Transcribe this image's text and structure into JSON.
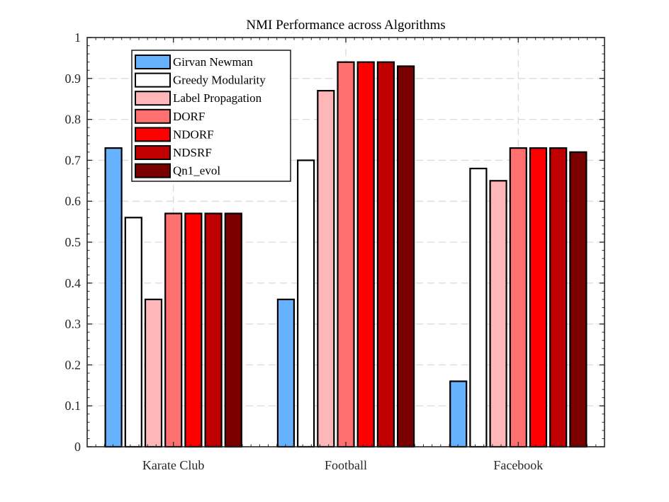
{
  "chart_data": {
    "type": "bar",
    "title": "NMI Performance across Algorithms",
    "xlabel": "",
    "ylabel": "",
    "categories": [
      "Karate Club",
      "Football",
      "Facebook"
    ],
    "ylim": [
      0,
      1
    ],
    "yticks": [
      "0",
      "0.1",
      "0.2",
      "0.3",
      "0.4",
      "0.5",
      "0.6",
      "0.7",
      "0.8",
      "0.9",
      "1"
    ],
    "grid": true,
    "legend_position": "top-left",
    "series": [
      {
        "name": "Girvan Newman",
        "color": "#66b2ff",
        "values": [
          0.73,
          0.36,
          0.16
        ]
      },
      {
        "name": "Greedy Modularity",
        "color": "#ffffff",
        "values": [
          0.56,
          0.7,
          0.68
        ]
      },
      {
        "name": "Label Propagation",
        "color": "#ffb6b9",
        "values": [
          0.36,
          0.87,
          0.65
        ]
      },
      {
        "name": "DORF",
        "color": "#ff7070",
        "values": [
          0.57,
          0.94,
          0.73
        ]
      },
      {
        "name": "NDORF",
        "color": "#ff0000",
        "values": [
          0.57,
          0.94,
          0.73
        ]
      },
      {
        "name": "NDSRF",
        "color": "#c00000",
        "values": [
          0.57,
          0.94,
          0.73
        ]
      },
      {
        "name": "Qn1_evol",
        "color": "#7a0000",
        "values": [
          0.57,
          0.93,
          0.72
        ]
      }
    ]
  }
}
